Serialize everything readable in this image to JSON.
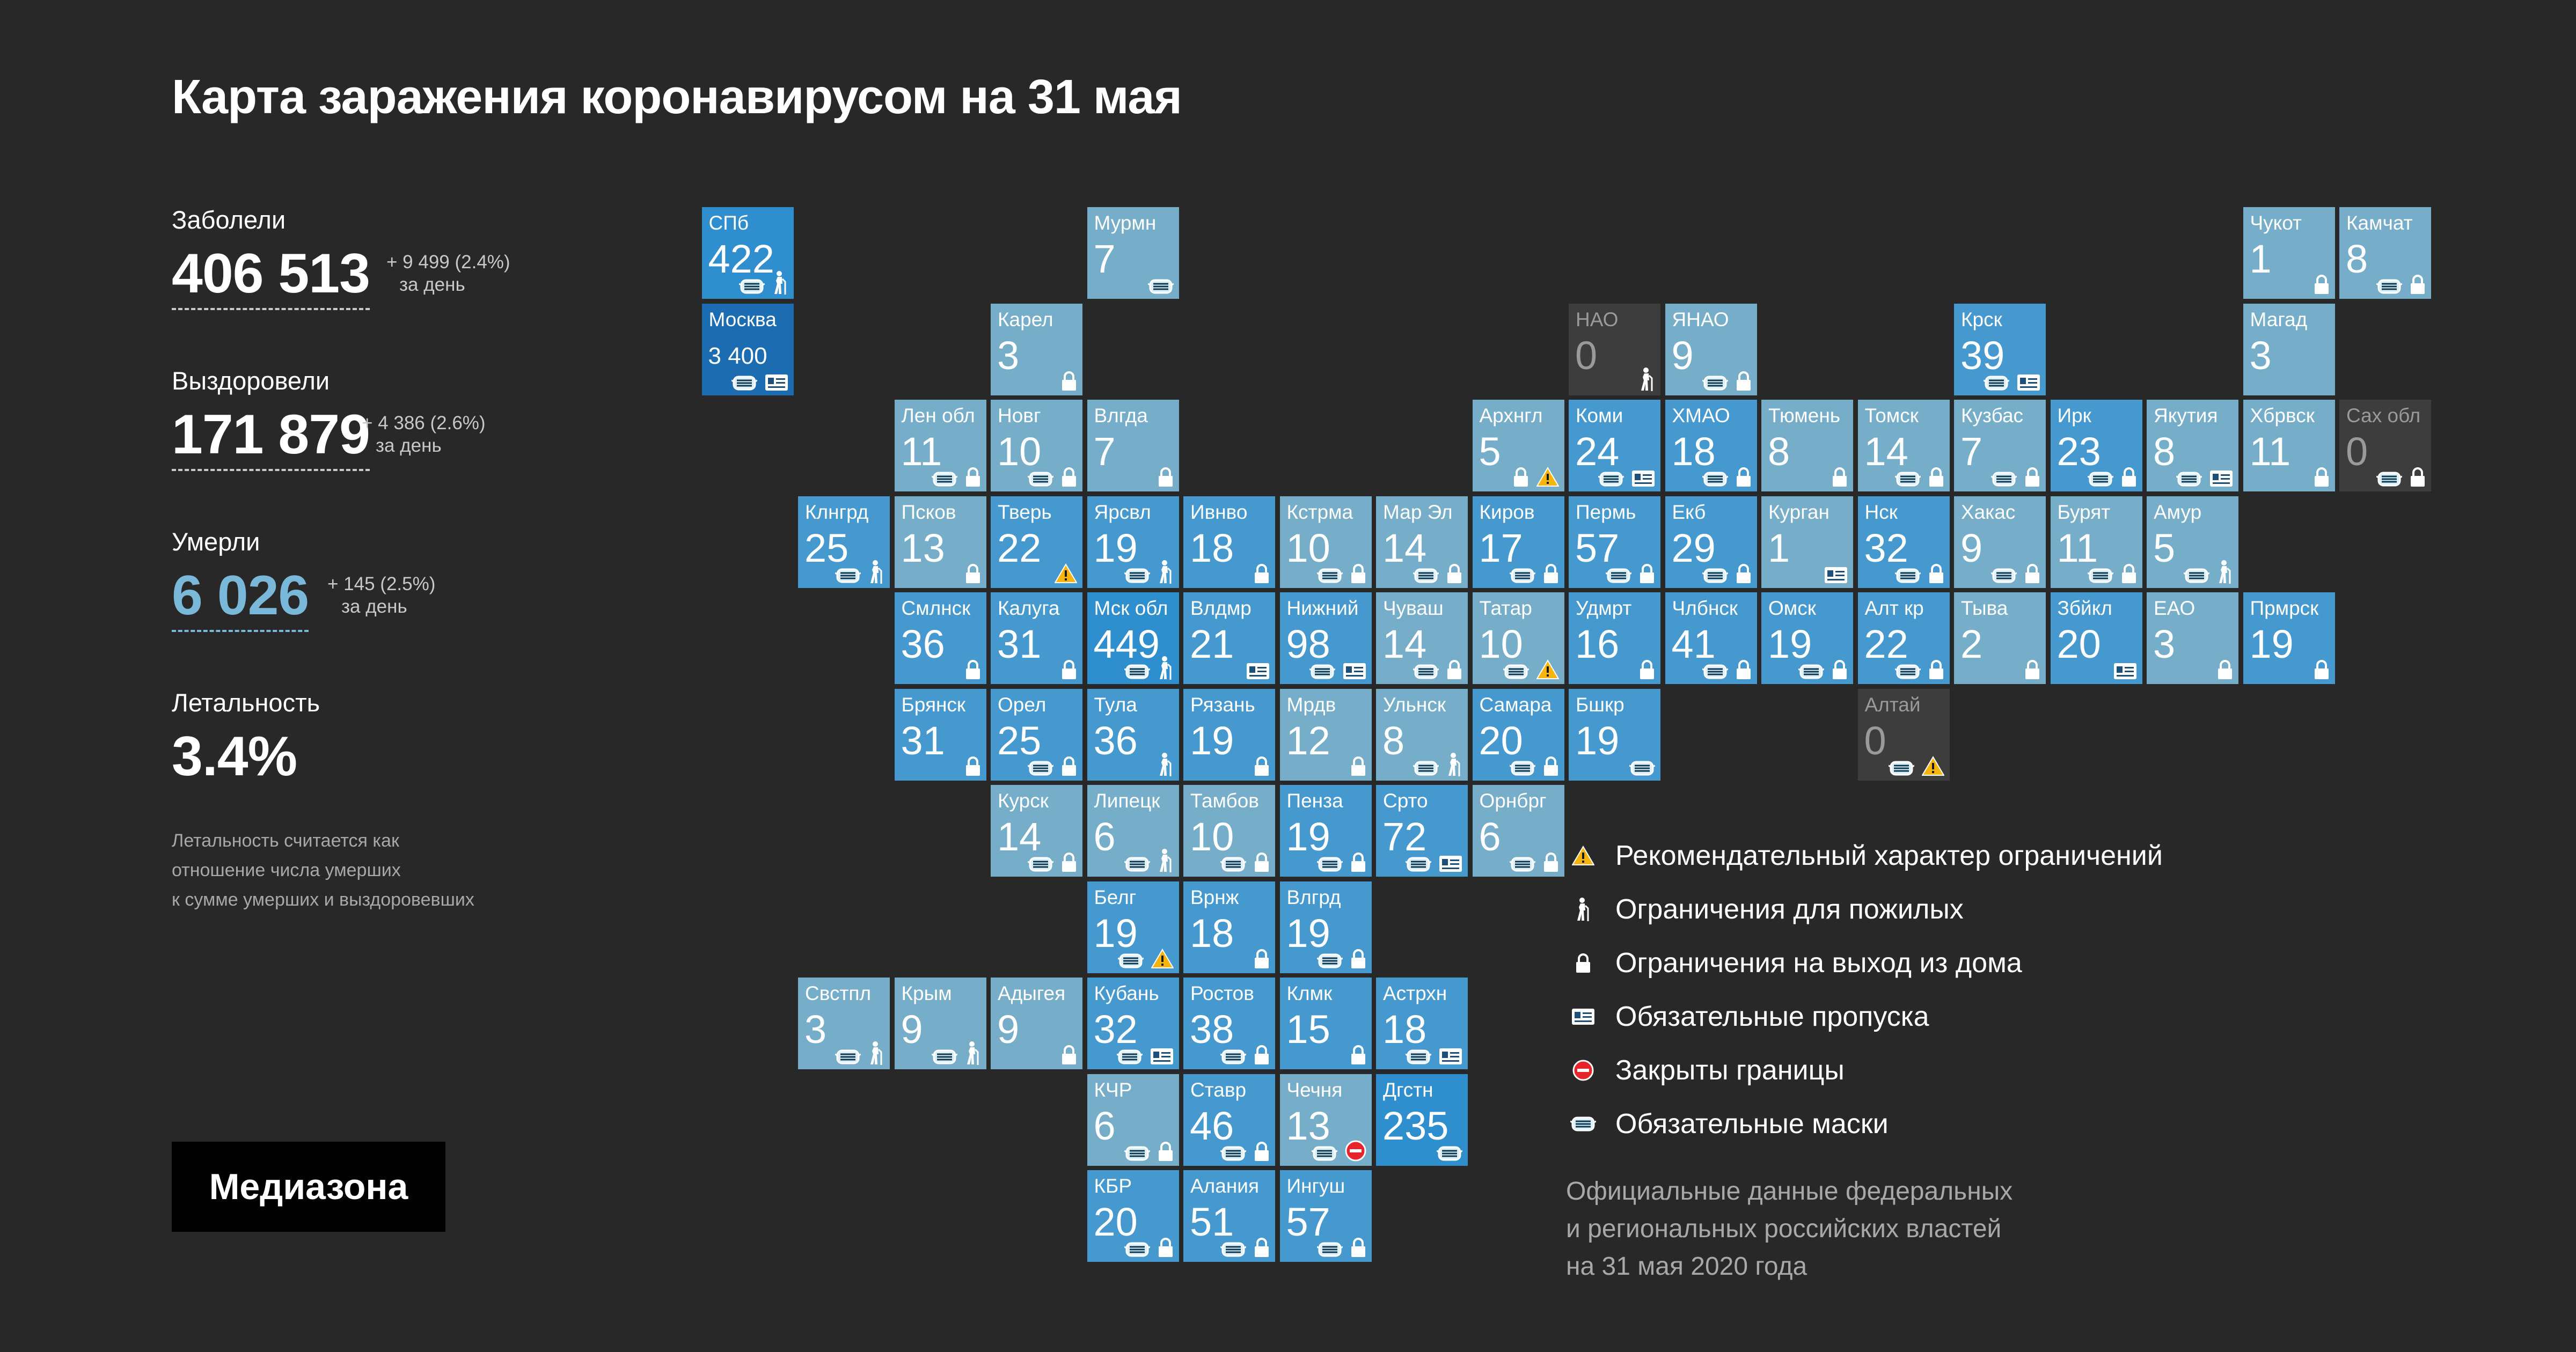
{
  "title": "Карта заражения коронавирусом на 31 мая",
  "stats": {
    "infected": {
      "label": "Заболели",
      "value": "406 513",
      "delta": "+ 9 499 (2.4%)",
      "per_day": "за день"
    },
    "recovered": {
      "label": "Выздоровели",
      "value": "171 879",
      "delta": "+ 4 386 (2.6%)",
      "per_day": "за день"
    },
    "died": {
      "label": "Умерли",
      "value": "6 026",
      "delta": "+ 145 (2.5%)",
      "per_day": "за день"
    },
    "lethality": {
      "label": "Летальность",
      "value": "3.4%"
    }
  },
  "note": [
    "Летальность считается как",
    "отношение числа умерших",
    "к сумме умерших и выздоровевших"
  ],
  "logo": "Медиазона",
  "legend": [
    {
      "icon": "warning-icon",
      "text": "Рекомендательный характер ограничений"
    },
    {
      "icon": "elderly-icon",
      "text": "Ограничения для пожилых"
    },
    {
      "icon": "lock-icon",
      "text": "Ограничения на выход из дома"
    },
    {
      "icon": "pass-icon",
      "text": "Обязательные пропуска"
    },
    {
      "icon": "closed-border-icon",
      "text": "Закрыты границы"
    },
    {
      "icon": "mask-icon",
      "text": "Обязательные маски"
    }
  ],
  "source": [
    "Официальные данные федеральных",
    "и региональных российских властей",
    "на 31 мая 2020 года"
  ],
  "colors": {
    "background": "#282828",
    "level_low": "#76adc8",
    "level_mid": "#4699cf",
    "level_high": "#2f8ecd",
    "level_max": "#1c6cb2",
    "no_data": "#3d3d3d",
    "warning": "#f5b50e",
    "closed": "#e5242c"
  },
  "chart_data": {
    "type": "heatmap",
    "value_label": "Умерли",
    "regions": [
      {
        "name": "СПб",
        "value": 422,
        "col": 1,
        "row": 0,
        "icons": [
          "mask",
          "elderly"
        ]
      },
      {
        "name": "Москва",
        "value": 3400,
        "display": "3 400",
        "col": 1,
        "row": 1,
        "icons": [
          "mask",
          "pass"
        ]
      },
      {
        "name": "Мурмн",
        "value": 7,
        "col": 5,
        "row": 0,
        "icons": [
          "mask"
        ]
      },
      {
        "name": "Карел",
        "value": 3,
        "col": 4,
        "row": 1,
        "icons": [
          "lock"
        ]
      },
      {
        "name": "Лен обл",
        "value": 11,
        "col": 3,
        "row": 2,
        "icons": [
          "mask",
          "lock"
        ]
      },
      {
        "name": "Новг",
        "value": 10,
        "col": 4,
        "row": 2,
        "icons": [
          "mask",
          "lock"
        ]
      },
      {
        "name": "Влгда",
        "value": 7,
        "col": 5,
        "row": 2,
        "icons": [
          "lock"
        ]
      },
      {
        "name": "Клнгрд",
        "value": 25,
        "col": 2,
        "row": 3,
        "icons": [
          "mask",
          "elderly"
        ]
      },
      {
        "name": "Псков",
        "value": 13,
        "col": 3,
        "row": 3,
        "icons": [
          "lock"
        ]
      },
      {
        "name": "Тверь",
        "value": 22,
        "col": 4,
        "row": 3,
        "icons": [
          "warning"
        ]
      },
      {
        "name": "Ярсвл",
        "value": 19,
        "col": 5,
        "row": 3,
        "icons": [
          "mask",
          "elderly"
        ]
      },
      {
        "name": "Ивнво",
        "value": 18,
        "col": 6,
        "row": 3,
        "icons": [
          "lock"
        ]
      },
      {
        "name": "Кстрма",
        "value": 10,
        "col": 7,
        "row": 3,
        "icons": [
          "mask",
          "lock"
        ]
      },
      {
        "name": "Мар Эл",
        "value": 14,
        "col": 8,
        "row": 3,
        "icons": [
          "mask",
          "lock"
        ]
      },
      {
        "name": "Смлнск",
        "value": 36,
        "col": 3,
        "row": 4,
        "icons": [
          "lock"
        ]
      },
      {
        "name": "Калуга",
        "value": 31,
        "col": 4,
        "row": 4,
        "icons": [
          "lock"
        ]
      },
      {
        "name": "Мск обл",
        "value": 449,
        "col": 5,
        "row": 4,
        "icons": [
          "mask",
          "elderly"
        ]
      },
      {
        "name": "Влдмр",
        "value": 21,
        "col": 6,
        "row": 4,
        "icons": [
          "pass"
        ]
      },
      {
        "name": "Нижний",
        "value": 98,
        "col": 7,
        "row": 4,
        "icons": [
          "mask",
          "pass"
        ]
      },
      {
        "name": "Чуваш",
        "value": 14,
        "col": 8,
        "row": 4,
        "icons": [
          "mask",
          "lock"
        ]
      },
      {
        "name": "Брянск",
        "value": 31,
        "col": 3,
        "row": 5,
        "icons": [
          "lock"
        ]
      },
      {
        "name": "Орел",
        "value": 25,
        "col": 4,
        "row": 5,
        "icons": [
          "mask",
          "lock"
        ]
      },
      {
        "name": "Тула",
        "value": 36,
        "col": 5,
        "row": 5,
        "icons": [
          "elderly"
        ]
      },
      {
        "name": "Рязань",
        "value": 19,
        "col": 6,
        "row": 5,
        "icons": [
          "lock"
        ]
      },
      {
        "name": "Мрдв",
        "value": 12,
        "col": 7,
        "row": 5,
        "icons": [
          "lock"
        ]
      },
      {
        "name": "Ульнск",
        "value": 8,
        "col": 8,
        "row": 5,
        "icons": [
          "mask",
          "elderly"
        ]
      },
      {
        "name": "Курск",
        "value": 14,
        "col": 4,
        "row": 6,
        "icons": [
          "mask",
          "lock"
        ]
      },
      {
        "name": "Липецк",
        "value": 6,
        "col": 5,
        "row": 6,
        "icons": [
          "mask",
          "elderly"
        ]
      },
      {
        "name": "Тамбов",
        "value": 10,
        "col": 6,
        "row": 6,
        "icons": [
          "mask",
          "lock"
        ]
      },
      {
        "name": "Пенза",
        "value": 19,
        "col": 7,
        "row": 6,
        "icons": [
          "mask",
          "lock"
        ]
      },
      {
        "name": "Срто",
        "value": 72,
        "col": 8,
        "row": 6,
        "icons": [
          "mask",
          "pass"
        ]
      },
      {
        "name": "Белг",
        "value": 19,
        "col": 5,
        "row": 7,
        "icons": [
          "mask",
          "warning"
        ]
      },
      {
        "name": "Врнж",
        "value": 18,
        "col": 6,
        "row": 7,
        "icons": [
          "lock"
        ]
      },
      {
        "name": "Влгрд",
        "value": 19,
        "col": 7,
        "row": 7,
        "icons": [
          "mask",
          "lock"
        ]
      },
      {
        "name": "Свстпл",
        "value": 3,
        "col": 2,
        "row": 8,
        "icons": [
          "mask",
          "elderly"
        ]
      },
      {
        "name": "Крым",
        "value": 9,
        "col": 3,
        "row": 8,
        "icons": [
          "mask",
          "elderly"
        ]
      },
      {
        "name": "Адыгея",
        "value": 9,
        "col": 4,
        "row": 8,
        "icons": [
          "lock"
        ]
      },
      {
        "name": "Кубань",
        "value": 32,
        "col": 5,
        "row": 8,
        "icons": [
          "mask",
          "pass"
        ]
      },
      {
        "name": "Ростов",
        "value": 38,
        "col": 6,
        "row": 8,
        "icons": [
          "mask",
          "lock"
        ]
      },
      {
        "name": "Клмк",
        "value": 15,
        "col": 7,
        "row": 8,
        "icons": [
          "lock"
        ]
      },
      {
        "name": "Астрхн",
        "value": 18,
        "col": 8,
        "row": 8,
        "icons": [
          "mask",
          "pass"
        ]
      },
      {
        "name": "КЧР",
        "value": 6,
        "col": 5,
        "row": 9,
        "icons": [
          "mask",
          "lock"
        ]
      },
      {
        "name": "Ставр",
        "value": 46,
        "col": 6,
        "row": 9,
        "icons": [
          "mask",
          "lock"
        ]
      },
      {
        "name": "Чечня",
        "value": 13,
        "col": 7,
        "row": 9,
        "icons": [
          "mask",
          "closed"
        ]
      },
      {
        "name": "Дгстн",
        "value": 235,
        "col": 8,
        "row": 9,
        "icons": [
          "mask"
        ]
      },
      {
        "name": "КБР",
        "value": 20,
        "col": 5,
        "row": 10,
        "icons": [
          "mask",
          "lock"
        ]
      },
      {
        "name": "Алания",
        "value": 51,
        "col": 6,
        "row": 10,
        "icons": [
          "mask",
          "lock"
        ]
      },
      {
        "name": "Ингуш",
        "value": 57,
        "col": 7,
        "row": 10,
        "icons": [
          "mask",
          "lock"
        ]
      },
      {
        "name": "Архнгл",
        "value": 5,
        "col": 9,
        "row": 2,
        "icons": [
          "lock",
          "warning"
        ]
      },
      {
        "name": "Киров",
        "value": 17,
        "col": 9,
        "row": 3,
        "icons": [
          "mask",
          "lock"
        ]
      },
      {
        "name": "Татар",
        "value": 10,
        "col": 9,
        "row": 4,
        "icons": [
          "mask",
          "warning"
        ]
      },
      {
        "name": "Самара",
        "value": 20,
        "col": 9,
        "row": 5,
        "icons": [
          "mask",
          "lock"
        ]
      },
      {
        "name": "Орнбрг",
        "value": 6,
        "col": 9,
        "row": 6,
        "icons": [
          "mask",
          "lock"
        ]
      },
      {
        "name": "НАО",
        "value": 0,
        "col": 10,
        "row": 1,
        "icons": [
          "elderly"
        ],
        "nodata": true
      },
      {
        "name": "Коми",
        "value": 24,
        "col": 10,
        "row": 2,
        "icons": [
          "mask",
          "pass"
        ]
      },
      {
        "name": "Пермь",
        "value": 57,
        "col": 10,
        "row": 3,
        "icons": [
          "mask",
          "lock"
        ]
      },
      {
        "name": "Удмрт",
        "value": 16,
        "col": 10,
        "row": 4,
        "icons": [
          "lock"
        ]
      },
      {
        "name": "Бшкр",
        "value": 19,
        "col": 10,
        "row": 5,
        "icons": [
          "mask"
        ]
      },
      {
        "name": "ЯНАО",
        "value": 9,
        "col": 11,
        "row": 1,
        "icons": [
          "mask",
          "lock"
        ]
      },
      {
        "name": "ХМАО",
        "value": 18,
        "col": 11,
        "row": 2,
        "icons": [
          "mask",
          "lock"
        ]
      },
      {
        "name": "Екб",
        "value": 29,
        "col": 11,
        "row": 3,
        "icons": [
          "mask",
          "lock"
        ]
      },
      {
        "name": "Члбнск",
        "value": 41,
        "col": 11,
        "row": 4,
        "icons": [
          "mask",
          "lock"
        ]
      },
      {
        "name": "Тюмень",
        "value": 8,
        "col": 12,
        "row": 2,
        "icons": [
          "lock"
        ]
      },
      {
        "name": "Курган",
        "value": 1,
        "col": 12,
        "row": 3,
        "icons": [
          "pass"
        ]
      },
      {
        "name": "Омск",
        "value": 19,
        "col": 12,
        "row": 4,
        "icons": [
          "mask",
          "lock"
        ]
      },
      {
        "name": "Томск",
        "value": 14,
        "col": 13,
        "row": 2,
        "icons": [
          "mask",
          "lock"
        ]
      },
      {
        "name": "Нск",
        "value": 32,
        "col": 13,
        "row": 3,
        "icons": [
          "mask",
          "lock"
        ]
      },
      {
        "name": "Алт кр",
        "value": 22,
        "col": 13,
        "row": 4,
        "icons": [
          "mask",
          "lock"
        ]
      },
      {
        "name": "Алтай",
        "value": 0,
        "col": 13,
        "row": 5,
        "icons": [
          "mask",
          "warning"
        ],
        "nodata": true
      },
      {
        "name": "Крск",
        "value": 39,
        "col": 14,
        "row": 1,
        "icons": [
          "mask",
          "pass"
        ]
      },
      {
        "name": "Кузбас",
        "value": 7,
        "col": 14,
        "row": 2,
        "icons": [
          "mask",
          "lock"
        ]
      },
      {
        "name": "Хакас",
        "value": 9,
        "col": 14,
        "row": 3,
        "icons": [
          "mask",
          "lock"
        ]
      },
      {
        "name": "Тыва",
        "value": 2,
        "col": 14,
        "row": 4,
        "icons": [
          "lock"
        ]
      },
      {
        "name": "Ирк",
        "value": 23,
        "col": 15,
        "row": 2,
        "icons": [
          "mask",
          "lock"
        ]
      },
      {
        "name": "Бурят",
        "value": 11,
        "col": 15,
        "row": 3,
        "icons": [
          "mask",
          "lock"
        ]
      },
      {
        "name": "Збйкл",
        "value": 20,
        "col": 15,
        "row": 4,
        "icons": [
          "pass"
        ]
      },
      {
        "name": "Якутия",
        "value": 8,
        "col": 16,
        "row": 2,
        "icons": [
          "mask",
          "pass"
        ]
      },
      {
        "name": "Амур",
        "value": 5,
        "col": 16,
        "row": 3,
        "icons": [
          "mask",
          "elderly"
        ]
      },
      {
        "name": "ЕАО",
        "value": 3,
        "col": 16,
        "row": 4,
        "icons": [
          "lock"
        ]
      },
      {
        "name": "Чукот",
        "value": 1,
        "col": 17,
        "row": 0,
        "icons": [
          "lock"
        ]
      },
      {
        "name": "Магад",
        "value": 3,
        "col": 17,
        "row": 1,
        "icons": []
      },
      {
        "name": "Хбрвск",
        "value": 11,
        "col": 17,
        "row": 2,
        "icons": [
          "lock"
        ]
      },
      {
        "name": "Прмрск",
        "value": 19,
        "col": 17,
        "row": 4,
        "icons": [
          "lock"
        ]
      },
      {
        "name": "Камчат",
        "value": 8,
        "col": 18,
        "row": 0,
        "icons": [
          "mask",
          "lock"
        ]
      },
      {
        "name": "Сах обл",
        "value": 0,
        "col": 18,
        "row": 2,
        "icons": [
          "mask",
          "lock"
        ],
        "nodata": true
      }
    ]
  }
}
